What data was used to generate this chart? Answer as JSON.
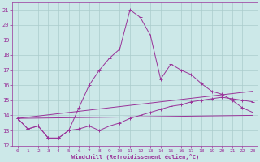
{
  "xlabel": "Windchill (Refroidissement éolien,°C)",
  "bg_color": "#cce8e8",
  "line_color": "#993399",
  "grid_color": "#aacccc",
  "ylim": [
    12,
    21.5
  ],
  "xlim": [
    -0.5,
    23.5
  ],
  "yticks": [
    12,
    13,
    14,
    15,
    16,
    17,
    18,
    19,
    20,
    21
  ],
  "xticks": [
    0,
    1,
    2,
    3,
    4,
    5,
    6,
    7,
    8,
    9,
    10,
    11,
    12,
    13,
    14,
    15,
    16,
    17,
    18,
    19,
    20,
    21,
    22,
    23
  ],
  "series1_x": [
    0,
    1,
    2,
    3,
    4,
    5,
    6,
    7,
    8,
    9,
    10,
    11,
    12,
    13,
    14,
    15,
    16,
    17,
    18,
    19,
    20,
    21,
    22,
    23
  ],
  "series1_y": [
    13.8,
    13.1,
    13.3,
    12.5,
    12.5,
    13.0,
    13.1,
    13.3,
    13.0,
    13.3,
    13.5,
    13.8,
    14.0,
    14.2,
    14.4,
    14.6,
    14.7,
    14.9,
    15.0,
    15.1,
    15.2,
    15.1,
    15.0,
    14.9
  ],
  "series2_x": [
    0,
    23
  ],
  "series2_y": [
    13.8,
    14.0
  ],
  "series3_x": [
    0,
    23
  ],
  "series3_y": [
    13.8,
    15.6
  ],
  "series4_x": [
    0,
    1,
    2,
    3,
    4,
    5,
    6,
    7,
    8,
    9,
    10,
    11,
    12,
    13,
    14,
    15,
    16,
    17,
    18,
    19,
    20,
    21,
    22,
    23
  ],
  "series4_y": [
    13.8,
    13.1,
    13.3,
    12.5,
    12.5,
    13.0,
    14.5,
    16.0,
    17.0,
    17.8,
    18.4,
    21.0,
    20.5,
    19.3,
    16.4,
    17.4,
    17.0,
    16.7,
    16.1,
    15.6,
    15.4,
    15.0,
    14.5,
    14.2
  ]
}
